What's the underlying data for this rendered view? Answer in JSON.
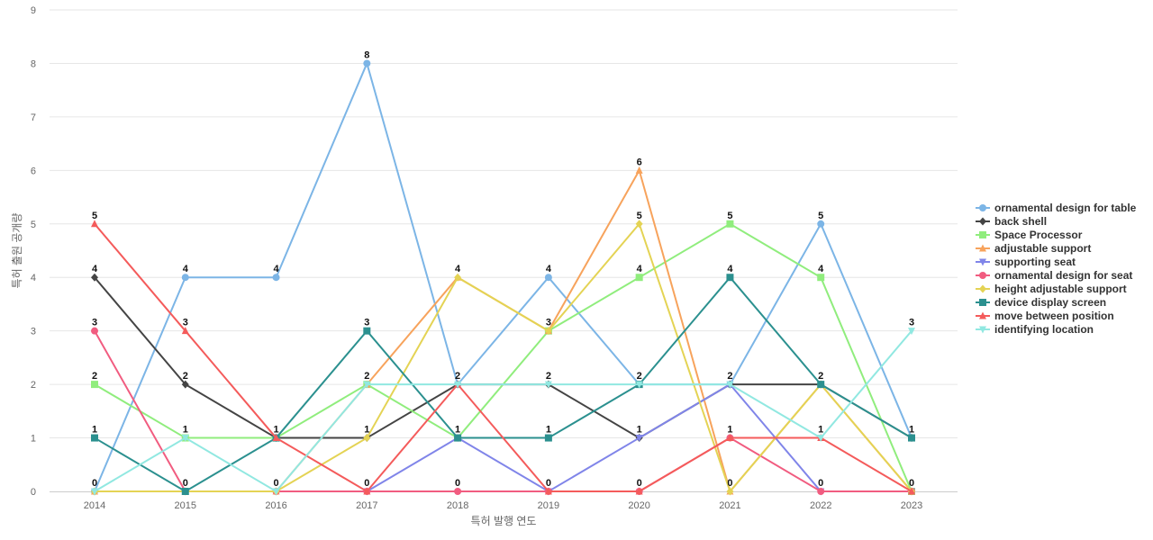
{
  "chart_data": {
    "type": "line",
    "title": "",
    "xlabel": "특허 발행 연도",
    "ylabel": "특허 출원 공개량",
    "x": [
      "2014",
      "2015",
      "2016",
      "2017",
      "2018",
      "2019",
      "2020",
      "2021",
      "2022",
      "2023"
    ],
    "ylim": [
      0,
      9
    ],
    "yticks": [
      "0",
      "1",
      "2",
      "3",
      "4",
      "5",
      "6",
      "7",
      "8",
      "9"
    ],
    "grid": true,
    "legend": "right",
    "series": [
      {
        "name": "ornamental design for table",
        "color": "#7cb5e6",
        "marker": "circle",
        "values": [
          0,
          4,
          4,
          8,
          2,
          4,
          2,
          2,
          5,
          1
        ]
      },
      {
        "name": "back shell",
        "color": "#444444",
        "marker": "diamond",
        "values": [
          4,
          2,
          1,
          1,
          2,
          2,
          1,
          2,
          2,
          1
        ]
      },
      {
        "name": "Space Processor",
        "color": "#90ed7d",
        "marker": "square",
        "values": [
          2,
          1,
          1,
          2,
          1,
          3,
          4,
          5,
          4,
          0
        ]
      },
      {
        "name": "adjustable support",
        "color": "#f7a35c",
        "marker": "triangle",
        "values": [
          0,
          0,
          0,
          2,
          4,
          3,
          6,
          0,
          2,
          0
        ]
      },
      {
        "name": "supporting seat",
        "color": "#8085e9",
        "marker": "triangle-down",
        "values": [
          0,
          0,
          0,
          0,
          1,
          0,
          1,
          2,
          0,
          0
        ]
      },
      {
        "name": "ornamental design for seat",
        "color": "#f15c80",
        "marker": "circle",
        "values": [
          3,
          0,
          0,
          0,
          0,
          0,
          0,
          1,
          0,
          0
        ]
      },
      {
        "name": "height adjustable support",
        "color": "#e4d354",
        "marker": "diamond",
        "values": [
          0,
          0,
          0,
          1,
          4,
          3,
          5,
          0,
          2,
          0
        ]
      },
      {
        "name": "device display screen",
        "color": "#2b908f",
        "marker": "square",
        "values": [
          1,
          0,
          1,
          3,
          1,
          1,
          2,
          4,
          2,
          1
        ]
      },
      {
        "name": "move between position",
        "color": "#f45b5b",
        "marker": "triangle",
        "values": [
          5,
          3,
          1,
          0,
          2,
          0,
          0,
          1,
          1,
          0
        ]
      },
      {
        "name": "identifying location",
        "color": "#91e8e1",
        "marker": "triangle-down",
        "values": [
          0,
          1,
          0,
          2,
          2,
          2,
          2,
          2,
          1,
          3
        ]
      }
    ],
    "data_labels": [
      {
        "x": "2014",
        "labels": [
          "5",
          "4",
          "3",
          "2",
          "1",
          "0"
        ]
      },
      {
        "x": "2015",
        "labels": [
          "4",
          "3",
          "2",
          "1",
          "0"
        ]
      },
      {
        "x": "2016",
        "labels": [
          "4",
          "1",
          "0"
        ]
      },
      {
        "x": "2017",
        "labels": [
          "8",
          "3",
          "2",
          "1",
          "0"
        ]
      },
      {
        "x": "2018",
        "labels": [
          "4",
          "2",
          "1",
          "0"
        ]
      },
      {
        "x": "2019",
        "labels": [
          "4",
          "3",
          "2",
          "1",
          "0"
        ]
      },
      {
        "x": "2020",
        "labels": [
          "6",
          "5",
          "4",
          "2",
          "1",
          "0"
        ]
      },
      {
        "x": "2021",
        "labels": [
          "5",
          "4",
          "2",
          "1",
          "0"
        ]
      },
      {
        "x": "2022",
        "labels": [
          "5",
          "4",
          "2",
          "1",
          "0"
        ]
      },
      {
        "x": "2023",
        "labels": [
          "3",
          "1",
          "0"
        ]
      }
    ]
  }
}
